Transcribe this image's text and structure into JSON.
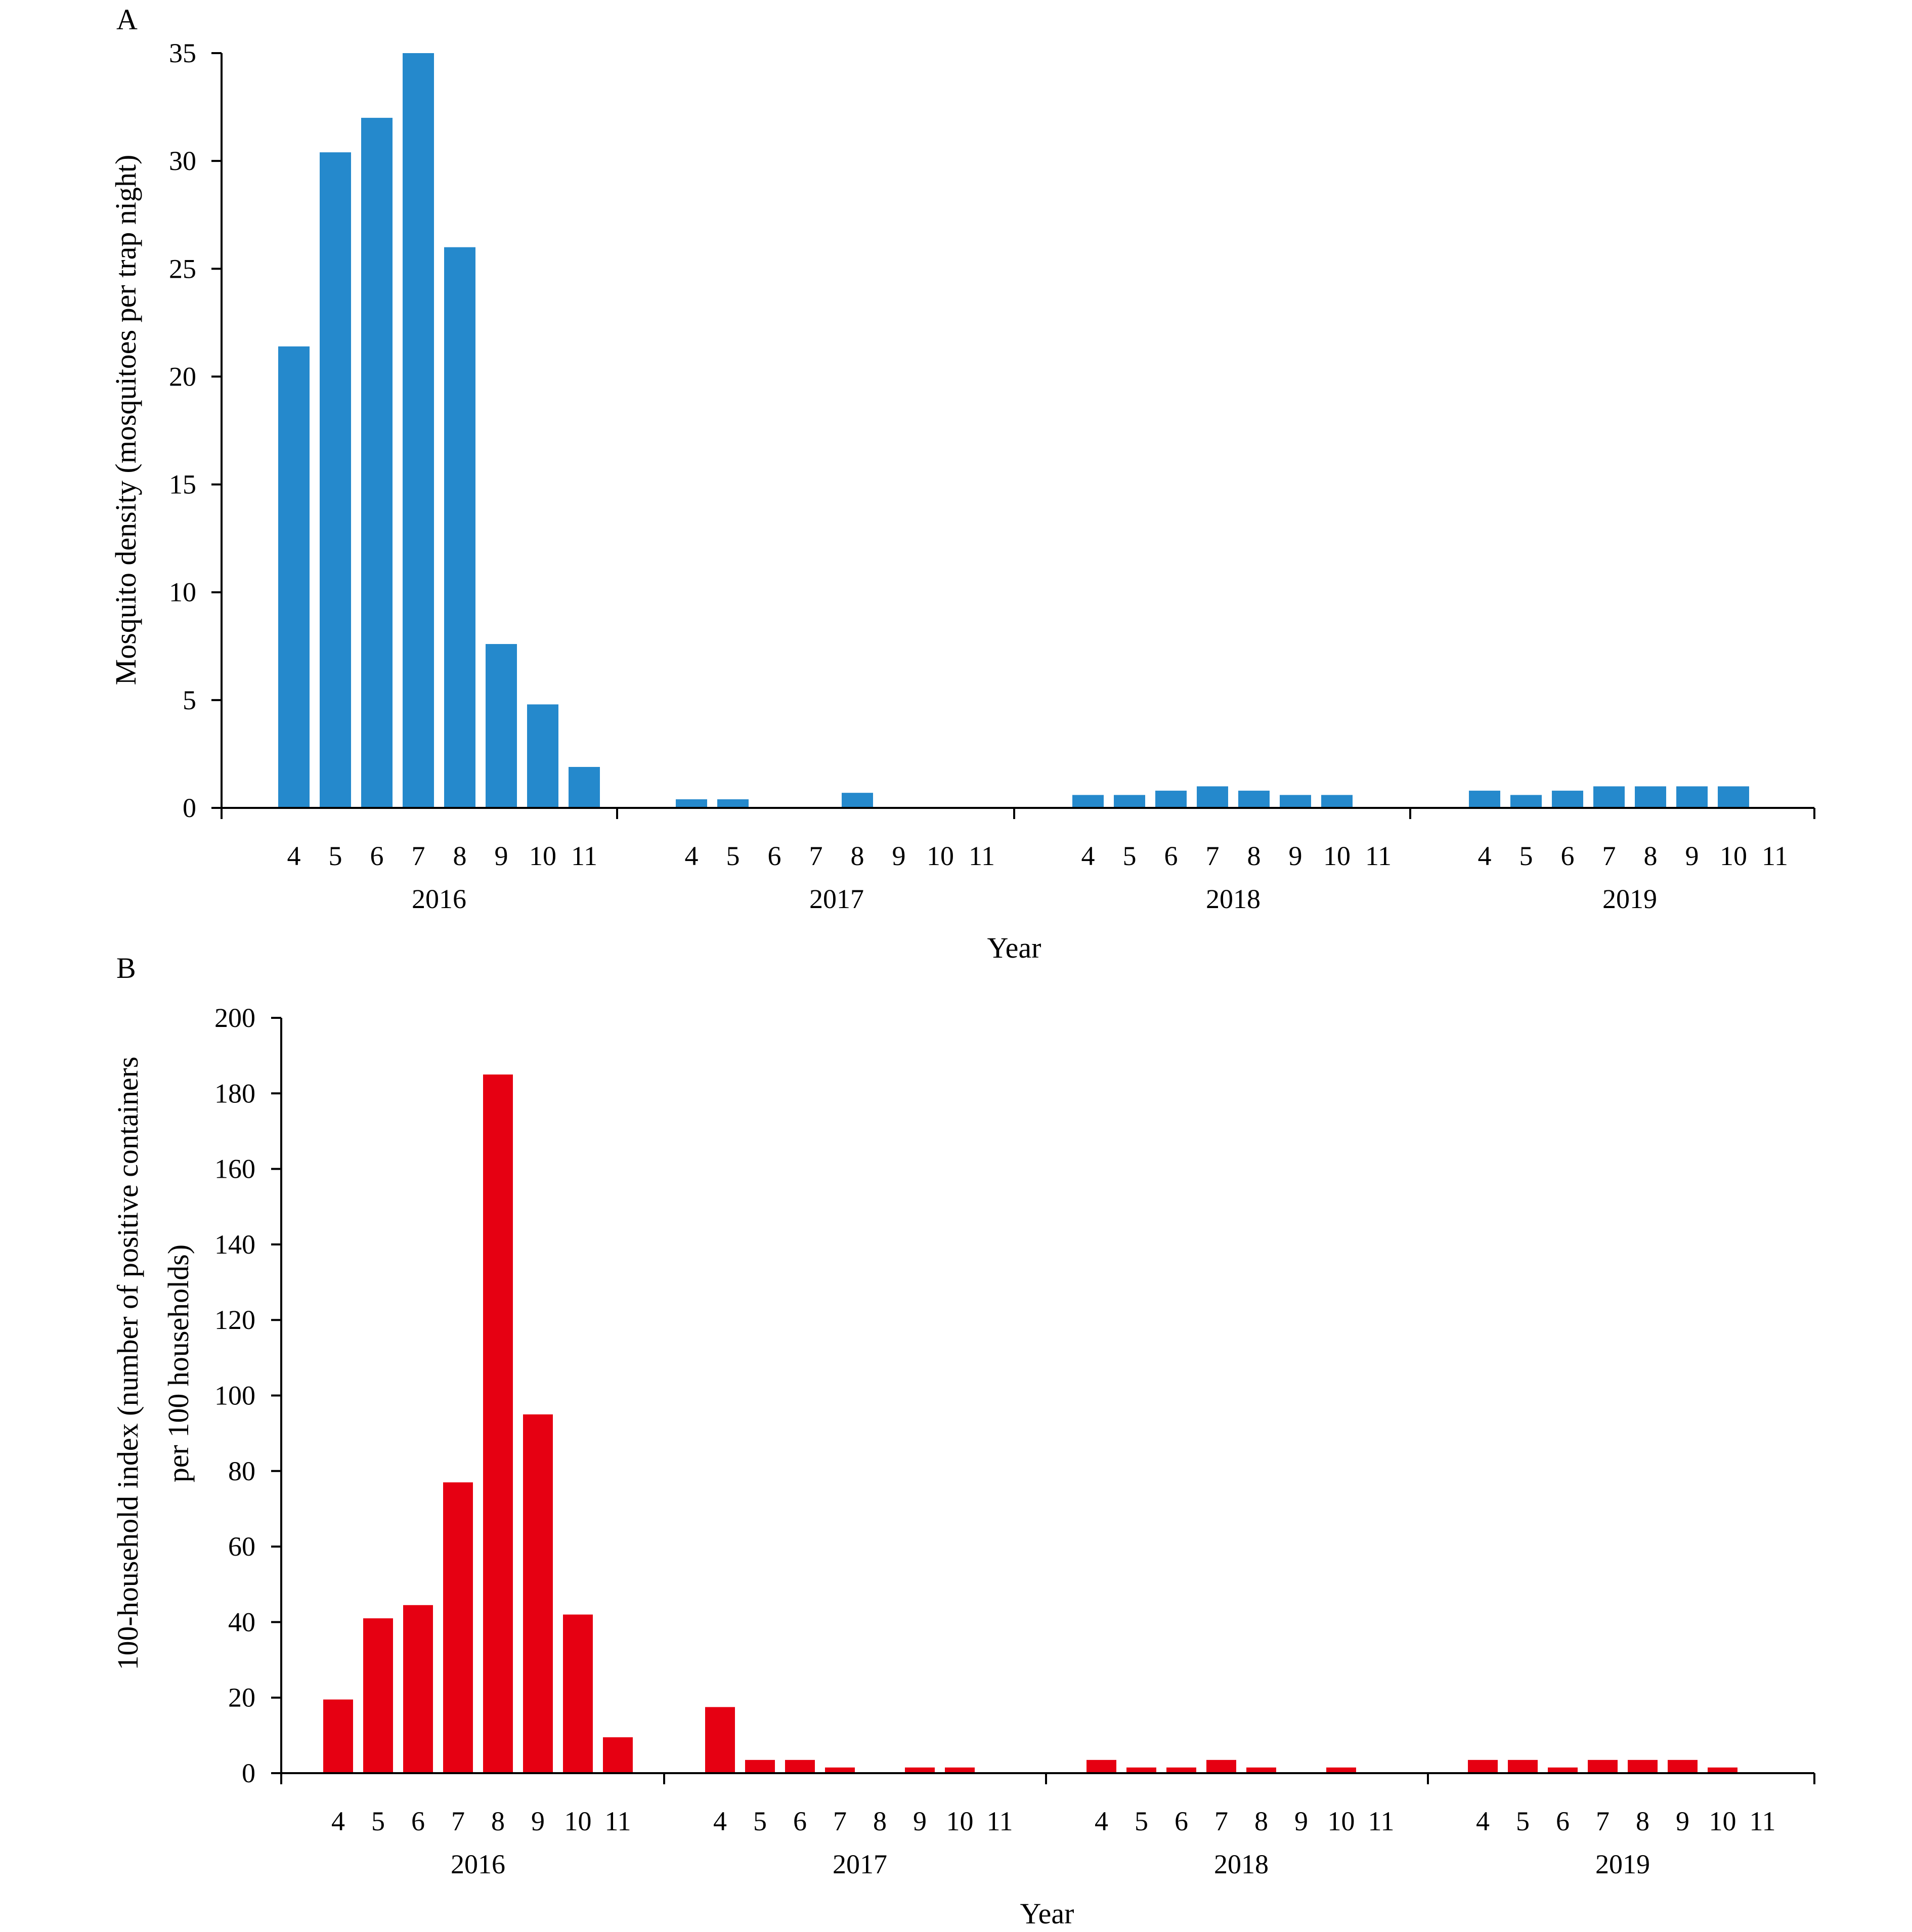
{
  "chart_data": [
    {
      "panel_label": "A",
      "type": "bar",
      "color": "#2589CC",
      "ylabel": "Mosquito density (mosquitoes per trap night)",
      "xlabel": "Year",
      "ylim": [
        0,
        35
      ],
      "yticks": [
        0,
        5,
        10,
        15,
        20,
        25,
        30,
        35
      ],
      "groups": [
        {
          "year": "2016",
          "months": [
            "4",
            "5",
            "6",
            "7",
            "8",
            "9",
            "10",
            "11"
          ],
          "values": [
            21.4,
            30.4,
            32.0,
            35.0,
            26.0,
            7.6,
            4.8,
            1.9
          ]
        },
        {
          "year": "2017",
          "months": [
            "4",
            "5",
            "6",
            "7",
            "8",
            "9",
            "10",
            "11"
          ],
          "values": [
            0.4,
            0.4,
            0,
            0,
            0.7,
            0,
            0,
            0
          ]
        },
        {
          "year": "2018",
          "months": [
            "4",
            "5",
            "6",
            "7",
            "8",
            "9",
            "10",
            "11"
          ],
          "values": [
            0.6,
            0.6,
            0.8,
            1.0,
            0.8,
            0.6,
            0.6,
            0
          ]
        },
        {
          "year": "2019",
          "months": [
            "4",
            "5",
            "6",
            "7",
            "8",
            "9",
            "10",
            "11"
          ],
          "values": [
            0.8,
            0.6,
            0.8,
            1.0,
            1.0,
            1.0,
            1.0,
            0
          ]
        }
      ]
    },
    {
      "panel_label": "B",
      "type": "bar",
      "color": "#E60012",
      "ylabel_line1": "100-household index (number of positive containers",
      "ylabel_line2": "per 100 households)",
      "xlabel": "Year",
      "ylim": [
        0,
        200
      ],
      "yticks": [
        0,
        20,
        40,
        60,
        80,
        100,
        120,
        140,
        160,
        180,
        200
      ],
      "groups": [
        {
          "year": "2016",
          "months": [
            "4",
            "5",
            "6",
            "7",
            "8",
            "9",
            "10",
            "11"
          ],
          "values": [
            19.5,
            41,
            44.5,
            77,
            185,
            95,
            42,
            9.5
          ]
        },
        {
          "year": "2017",
          "months": [
            "4",
            "5",
            "6",
            "7",
            "8",
            "9",
            "10",
            "11"
          ],
          "values": [
            17.5,
            3.5,
            3.5,
            1.5,
            0,
            1.5,
            1.5,
            0
          ]
        },
        {
          "year": "2018",
          "months": [
            "4",
            "5",
            "6",
            "7",
            "8",
            "9",
            "10",
            "11"
          ],
          "values": [
            3.5,
            1.5,
            1.5,
            3.5,
            1.5,
            0,
            1.5,
            0
          ]
        },
        {
          "year": "2019",
          "months": [
            "4",
            "5",
            "6",
            "7",
            "8",
            "9",
            "10",
            "11"
          ],
          "values": [
            3.5,
            3.5,
            1.5,
            3.5,
            3.5,
            3.5,
            1.5,
            0
          ]
        }
      ]
    }
  ]
}
